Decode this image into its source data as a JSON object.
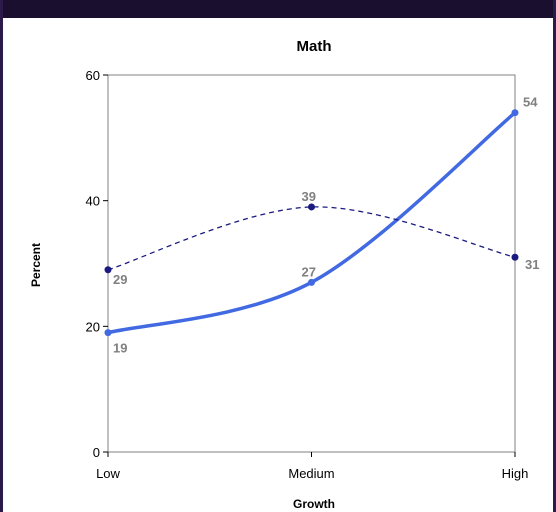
{
  "chart_data": {
    "type": "line",
    "title": "Math",
    "xlabel": "Growth",
    "ylabel": "Percent",
    "categories": [
      "Low",
      "Medium",
      "High"
    ],
    "ylim": [
      0,
      60
    ],
    "yticks": [
      "0",
      "20",
      "40",
      "60"
    ],
    "grid": false,
    "legend": "none",
    "series": [
      {
        "values": [
          19,
          27,
          54
        ],
        "color": "#4169e1",
        "style": "solid",
        "labels": [
          "19",
          "27",
          "54"
        ]
      },
      {
        "values": [
          29,
          39,
          31
        ],
        "color": "#1a1a80",
        "style": "dashed",
        "labels": [
          "29",
          "39",
          "31"
        ]
      }
    ],
    "label_color": "#808080"
  }
}
